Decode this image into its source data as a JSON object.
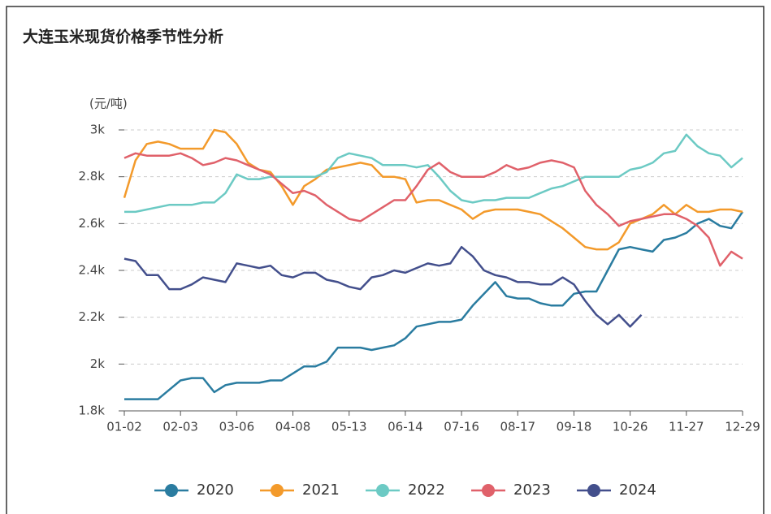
{
  "chart_data": {
    "type": "line",
    "title": "大连玉米现货价格季节性分析",
    "y_label": "(元/吨)",
    "categories": [
      "01-02",
      null,
      null,
      null,
      null,
      "02-03",
      null,
      null,
      null,
      null,
      "03-06",
      null,
      null,
      null,
      null,
      "04-08",
      null,
      null,
      null,
      null,
      "05-13",
      null,
      null,
      null,
      null,
      "06-14",
      null,
      null,
      null,
      null,
      "07-16",
      null,
      null,
      null,
      null,
      "08-17",
      null,
      null,
      null,
      null,
      "09-18",
      null,
      null,
      null,
      null,
      "10-26",
      null,
      null,
      null,
      null,
      "11-27",
      null,
      null,
      null,
      null,
      "12-29"
    ],
    "ylim": [
      1800,
      3000
    ],
    "yticks": [
      {
        "value": 1800,
        "label": "1.8k"
      },
      {
        "value": 2000,
        "label": "2k"
      },
      {
        "value": 2200,
        "label": "2.2k"
      },
      {
        "value": 2400,
        "label": "2.4k"
      },
      {
        "value": 2600,
        "label": "2.6k"
      },
      {
        "value": 2800,
        "label": "2.8k"
      },
      {
        "value": 3000,
        "label": "3k"
      }
    ],
    "grid": true,
    "legend": "bottom",
    "series": [
      {
        "name": "2020",
        "color": "#2a7ca0",
        "values": [
          1850,
          1850,
          1850,
          1850,
          1890,
          1930,
          1940,
          1940,
          1880,
          1910,
          1920,
          1920,
          1920,
          1930,
          1930,
          1960,
          1990,
          1990,
          2010,
          2070,
          2070,
          2070,
          2060,
          2070,
          2080,
          2110,
          2160,
          2170,
          2180,
          2180,
          2190,
          2250,
          2300,
          2350,
          2290,
          2280,
          2280,
          2260,
          2250,
          2250,
          2300,
          2310,
          2310,
          2400,
          2490,
          2500,
          2490,
          2480,
          2530,
          2540,
          2560,
          2600,
          2620,
          2590,
          2580,
          2650
        ]
      },
      {
        "name": "2021",
        "color": "#f39a2b",
        "values": [
          2710,
          2870,
          2940,
          2950,
          2940,
          2920,
          2920,
          2920,
          3000,
          2990,
          2940,
          2860,
          2830,
          2820,
          2760,
          2680,
          2760,
          2790,
          2830,
          2840,
          2850,
          2860,
          2850,
          2800,
          2800,
          2790,
          2690,
          2700,
          2700,
          2680,
          2660,
          2620,
          2650,
          2660,
          2660,
          2660,
          2650,
          2640,
          2610,
          2580,
          2540,
          2500,
          2490,
          2490,
          2520,
          2600,
          2620,
          2640,
          2680,
          2640,
          2680,
          2650,
          2650,
          2660,
          2660,
          2650
        ]
      },
      {
        "name": "2022",
        "color": "#6ccac4",
        "values": [
          2650,
          2650,
          2660,
          2670,
          2680,
          2680,
          2680,
          2690,
          2690,
          2730,
          2810,
          2790,
          2790,
          2800,
          2800,
          2800,
          2800,
          2800,
          2820,
          2880,
          2900,
          2890,
          2880,
          2850,
          2850,
          2850,
          2840,
          2850,
          2800,
          2740,
          2700,
          2690,
          2700,
          2700,
          2710,
          2710,
          2710,
          2730,
          2750,
          2760,
          2780,
          2800,
          2800,
          2800,
          2800,
          2830,
          2840,
          2860,
          2900,
          2910,
          2980,
          2930,
          2900,
          2890,
          2840,
          2880
        ]
      },
      {
        "name": "2023",
        "color": "#e0616a",
        "values": [
          2880,
          2900,
          2890,
          2890,
          2890,
          2900,
          2880,
          2850,
          2860,
          2880,
          2870,
          2850,
          2830,
          2810,
          2770,
          2730,
          2740,
          2720,
          2680,
          2650,
          2620,
          2610,
          2640,
          2670,
          2700,
          2700,
          2760,
          2830,
          2860,
          2820,
          2800,
          2800,
          2800,
          2820,
          2850,
          2830,
          2840,
          2860,
          2870,
          2860,
          2840,
          2740,
          2680,
          2640,
          2590,
          2610,
          2620,
          2630,
          2640,
          2640,
          2620,
          2590,
          2540,
          2420,
          2480,
          2450
        ]
      },
      {
        "name": "2024",
        "color": "#434f8c",
        "values": [
          2450,
          2440,
          2380,
          2380,
          2320,
          2320,
          2340,
          2370,
          2360,
          2350,
          2430,
          2420,
          2410,
          2420,
          2380,
          2370,
          2390,
          2390,
          2360,
          2350,
          2330,
          2320,
          2370,
          2380,
          2400,
          2390,
          2410,
          2430,
          2420,
          2430,
          2500,
          2460,
          2400,
          2380,
          2370,
          2350,
          2350,
          2340,
          2340,
          2370,
          2340,
          2270,
          2210,
          2170,
          2210,
          2160,
          2210,
          null,
          null,
          null,
          null,
          null,
          null,
          null,
          null,
          null
        ]
      }
    ]
  }
}
